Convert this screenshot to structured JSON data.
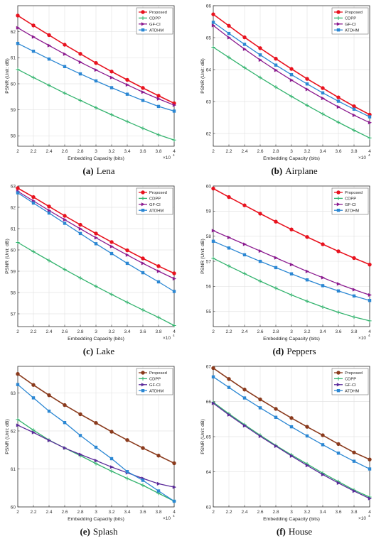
{
  "chart_data": [
    {
      "type": "line",
      "caption_label": "(a)",
      "caption_name": "Lena",
      "xlabel": "Embedding Capacity (bits)",
      "ylabel": "PSNR (Unit: dB)",
      "x_multiplier": "×10",
      "x_exponent": "4",
      "xlim": [
        2,
        4
      ],
      "ylim": [
        57.6,
        63
      ],
      "xticks": [
        2,
        2.2,
        2.4,
        2.6,
        2.8,
        3,
        3.2,
        3.4,
        3.6,
        3.8,
        4
      ],
      "yticks": [
        58,
        59,
        60,
        61,
        62
      ],
      "x": [
        2,
        2.2,
        2.4,
        2.6,
        2.8,
        3,
        3.2,
        3.4,
        3.6,
        3.8,
        4
      ],
      "series": [
        {
          "name": "Proposed",
          "color": "#e8121e",
          "marker": "circle",
          "values": [
            62.62,
            62.24,
            61.87,
            61.5,
            61.15,
            60.8,
            60.47,
            60.15,
            59.84,
            59.54,
            59.25
          ]
        },
        {
          "name": "CDPP",
          "color": "#33b36e",
          "marker": "plus",
          "values": [
            60.55,
            60.24,
            59.94,
            59.64,
            59.36,
            59.08,
            58.81,
            58.55,
            58.29,
            58.04,
            57.84
          ]
        },
        {
          "name": "GF-CI",
          "color": "#8b1a8f",
          "marker": "triangle",
          "values": [
            62.15,
            61.8,
            61.47,
            61.14,
            60.83,
            60.53,
            60.24,
            59.96,
            59.68,
            59.42,
            59.18
          ]
        },
        {
          "name": "ATDHM",
          "color": "#2b87d3",
          "marker": "square",
          "values": [
            61.55,
            61.25,
            60.95,
            60.66,
            60.38,
            60.11,
            59.85,
            59.6,
            59.36,
            59.13,
            58.95
          ]
        }
      ]
    },
    {
      "type": "line",
      "caption_label": "(b)",
      "caption_name": "Airplane",
      "xlabel": "Embedding Capacity (bits)",
      "ylabel": "PSNR (Unit: dB)",
      "x_multiplier": "×10",
      "x_exponent": "4",
      "xlim": [
        2,
        4
      ],
      "ylim": [
        61.6,
        66
      ],
      "xticks": [
        2,
        2.2,
        2.4,
        2.6,
        2.8,
        3,
        3.2,
        3.4,
        3.6,
        3.8,
        4
      ],
      "yticks": [
        62,
        63,
        64,
        65,
        66
      ],
      "x": [
        2,
        2.2,
        2.4,
        2.6,
        2.8,
        3,
        3.2,
        3.4,
        3.6,
        3.8,
        4
      ],
      "series": [
        {
          "name": "Proposed",
          "color": "#e8121e",
          "marker": "circle",
          "values": [
            65.73,
            65.37,
            65.01,
            64.67,
            64.34,
            64.02,
            63.71,
            63.42,
            63.13,
            62.85,
            62.59
          ]
        },
        {
          "name": "CDPP",
          "color": "#33b36e",
          "marker": "plus",
          "values": [
            64.7,
            64.38,
            64.06,
            63.75,
            63.45,
            63.16,
            62.88,
            62.61,
            62.35,
            62.1,
            61.86
          ]
        },
        {
          "name": "GF-CI",
          "color": "#8b1a8f",
          "marker": "triangle",
          "values": [
            65.38,
            65.0,
            64.64,
            64.3,
            63.98,
            63.67,
            63.38,
            63.1,
            62.83,
            62.57,
            62.34
          ]
        },
        {
          "name": "ATDHM",
          "color": "#2b87d3",
          "marker": "square",
          "values": [
            65.48,
            65.13,
            64.79,
            64.46,
            64.14,
            63.84,
            63.55,
            63.27,
            63.01,
            62.76,
            62.52
          ]
        }
      ]
    },
    {
      "type": "line",
      "caption_label": "(c)",
      "caption_name": "Lake",
      "xlabel": "Embedding Capacity (bits)",
      "ylabel": "PSNR (Unit: dB)",
      "x_multiplier": "×10",
      "x_exponent": "4",
      "xlim": [
        2,
        4
      ],
      "ylim": [
        56.4,
        63
      ],
      "xticks": [
        2,
        2.2,
        2.4,
        2.6,
        2.8,
        3,
        3.2,
        3.4,
        3.6,
        3.8,
        4
      ],
      "yticks": [
        57,
        58,
        59,
        60,
        61,
        62,
        63
      ],
      "x": [
        2,
        2.2,
        2.4,
        2.6,
        2.8,
        3,
        3.2,
        3.4,
        3.6,
        3.8,
        4
      ],
      "series": [
        {
          "name": "Proposed",
          "color": "#e8121e",
          "marker": "circle",
          "values": [
            62.9,
            62.48,
            62.04,
            61.6,
            61.18,
            60.77,
            60.37,
            59.98,
            59.6,
            59.24,
            58.9
          ]
        },
        {
          "name": "CDPP",
          "color": "#33b36e",
          "marker": "plus",
          "values": [
            60.35,
            59.92,
            59.5,
            59.08,
            58.68,
            58.29,
            57.91,
            57.54,
            57.18,
            56.83,
            56.45
          ]
        },
        {
          "name": "GF-CI",
          "color": "#8b1a8f",
          "marker": "triangle",
          "values": [
            62.75,
            62.3,
            61.85,
            61.42,
            60.99,
            60.57,
            60.16,
            59.76,
            59.37,
            59.0,
            58.65
          ]
        },
        {
          "name": "ATDHM",
          "color": "#2b87d3",
          "marker": "square",
          "values": [
            62.68,
            62.2,
            61.73,
            61.25,
            60.77,
            60.29,
            59.83,
            59.37,
            58.93,
            58.5,
            58.05
          ]
        }
      ]
    },
    {
      "type": "line",
      "caption_label": "(d)",
      "caption_name": "Peppers",
      "xlabel": "Embedding Capacity (bits)",
      "ylabel": "PSNR (Unit: dB)",
      "x_multiplier": "×10",
      "x_exponent": "4",
      "xlim": [
        2,
        4
      ],
      "ylim": [
        54.4,
        60
      ],
      "xticks": [
        2,
        2.2,
        2.4,
        2.6,
        2.8,
        3,
        3.2,
        3.4,
        3.6,
        3.8,
        4
      ],
      "yticks": [
        55,
        56,
        57,
        58,
        59,
        60
      ],
      "x": [
        2,
        2.2,
        2.4,
        2.6,
        2.8,
        3,
        3.2,
        3.4,
        3.6,
        3.8,
        4
      ],
      "series": [
        {
          "name": "Proposed",
          "color": "#e8121e",
          "marker": "circle",
          "values": [
            59.9,
            59.56,
            59.23,
            58.9,
            58.58,
            58.27,
            57.97,
            57.68,
            57.4,
            57.13,
            56.87
          ]
        },
        {
          "name": "CDPP",
          "color": "#33b36e",
          "marker": "plus",
          "values": [
            57.12,
            56.81,
            56.51,
            56.21,
            55.93,
            55.66,
            55.41,
            55.18,
            54.97,
            54.78,
            54.63
          ]
        },
        {
          "name": "GF-CI",
          "color": "#8b1a8f",
          "marker": "triangle",
          "values": [
            58.22,
            57.95,
            57.68,
            57.41,
            57.14,
            56.87,
            56.6,
            56.35,
            56.1,
            55.87,
            55.66
          ]
        },
        {
          "name": "ATDHM",
          "color": "#2b87d3",
          "marker": "square",
          "values": [
            57.8,
            57.53,
            57.26,
            57.0,
            56.75,
            56.5,
            56.26,
            56.03,
            55.82,
            55.62,
            55.44
          ]
        }
      ]
    },
    {
      "type": "line",
      "caption_label": "(e)",
      "caption_name": "Splash",
      "xlabel": "Embedding Capacity (bits)",
      "ylabel": "PSNR (Unit: dB)",
      "x_multiplier": "×10",
      "x_exponent": "4",
      "xlim": [
        2,
        4
      ],
      "ylim": [
        60,
        63.7
      ],
      "xticks": [
        2,
        2.2,
        2.4,
        2.6,
        2.8,
        3,
        3.2,
        3.4,
        3.6,
        3.8,
        4
      ],
      "yticks": [
        60,
        61,
        62,
        63
      ],
      "x": [
        2,
        2.2,
        2.4,
        2.6,
        2.8,
        3,
        3.2,
        3.4,
        3.6,
        3.8,
        4
      ],
      "series": [
        {
          "name": "Proposed",
          "color": "#8a3a1c",
          "marker": "circle",
          "values": [
            63.5,
            63.21,
            62.94,
            62.68,
            62.44,
            62.21,
            61.98,
            61.76,
            61.55,
            61.35,
            61.15
          ]
        },
        {
          "name": "CDPP",
          "color": "#33b36e",
          "marker": "plus",
          "values": [
            62.3,
            62.02,
            61.76,
            61.55,
            61.35,
            61.14,
            60.94,
            60.75,
            60.57,
            60.36,
            60.15
          ]
        },
        {
          "name": "GF-CI",
          "color": "#5a2a9a",
          "marker": "triangle",
          "values": [
            62.15,
            61.96,
            61.75,
            61.55,
            61.38,
            61.22,
            61.05,
            60.9,
            60.75,
            60.61,
            60.52
          ]
        },
        {
          "name": "ATDHM",
          "color": "#2b87d3",
          "marker": "square",
          "values": [
            63.22,
            62.87,
            62.52,
            62.22,
            61.88,
            61.57,
            61.27,
            60.93,
            60.7,
            60.42,
            60.15
          ]
        }
      ]
    },
    {
      "type": "line",
      "caption_label": "(f)",
      "caption_name": "House",
      "xlabel": "Embedding Capacity (bits)",
      "ylabel": "PSNR (Unit: dB)",
      "x_multiplier": "×10",
      "x_exponent": "4",
      "xlim": [
        2,
        4
      ],
      "ylim": [
        63,
        67
      ],
      "xticks": [
        2,
        2.2,
        2.4,
        2.6,
        2.8,
        3,
        3.2,
        3.4,
        3.6,
        3.8,
        4
      ],
      "yticks": [
        63,
        64,
        65,
        66,
        67
      ],
      "x": [
        2,
        2.2,
        2.4,
        2.6,
        2.8,
        3,
        3.2,
        3.4,
        3.6,
        3.8,
        4
      ],
      "series": [
        {
          "name": "Proposed",
          "color": "#8a3a1c",
          "marker": "circle",
          "values": [
            66.95,
            66.64,
            66.34,
            66.06,
            65.79,
            65.53,
            65.28,
            65.04,
            64.79,
            64.55,
            64.35
          ]
        },
        {
          "name": "CDPP",
          "color": "#33b36e",
          "marker": "plus",
          "values": [
            65.98,
            65.65,
            65.34,
            65.04,
            64.75,
            64.48,
            64.22,
            63.96,
            63.72,
            63.48,
            63.28
          ]
        },
        {
          "name": "GF-CI",
          "color": "#5a2a9a",
          "marker": "triangle",
          "values": [
            65.95,
            65.62,
            65.31,
            65.01,
            64.73,
            64.45,
            64.18,
            63.92,
            63.68,
            63.45,
            63.24
          ]
        },
        {
          "name": "ATDHM",
          "color": "#2b87d3",
          "marker": "square",
          "values": [
            66.7,
            66.4,
            66.1,
            65.82,
            65.55,
            65.28,
            65.02,
            64.77,
            64.53,
            64.3,
            64.08
          ]
        }
      ]
    }
  ]
}
